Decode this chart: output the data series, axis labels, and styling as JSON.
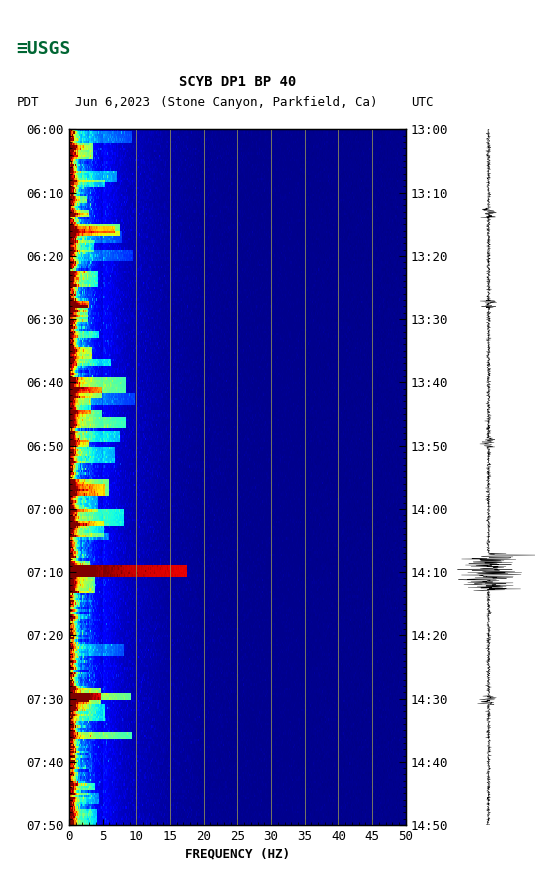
{
  "title_line1": "SCYB DP1 BP 40",
  "title_line2_pdt": "PDT   Jun 6,2023   (Stone Canyon, Parkfield, Ca)          UTC",
  "xlabel": "FREQUENCY (HZ)",
  "freq_min": 0,
  "freq_max": 50,
  "left_time_labels": [
    "06:00",
    "06:10",
    "06:20",
    "06:30",
    "06:40",
    "06:50",
    "07:00",
    "07:10",
    "07:20",
    "07:30",
    "07:40",
    "07:50"
  ],
  "right_time_labels": [
    "13:00",
    "13:10",
    "13:20",
    "13:30",
    "13:40",
    "13:50",
    "14:00",
    "14:10",
    "14:20",
    "14:30",
    "14:40",
    "14:50"
  ],
  "freq_ticks": [
    0,
    5,
    10,
    15,
    20,
    25,
    30,
    35,
    40,
    45,
    50
  ],
  "vline_freqs": [
    10,
    15,
    20,
    25,
    30,
    35,
    40,
    45
  ],
  "n_time": 300,
  "n_freq": 500,
  "background_color": "white",
  "vline_color": "#999955",
  "spectrogram_cmap": "jet",
  "usgs_color": "#006633",
  "title_fontsize": 10,
  "label_fontsize": 9,
  "xlabel_fontsize": 9
}
